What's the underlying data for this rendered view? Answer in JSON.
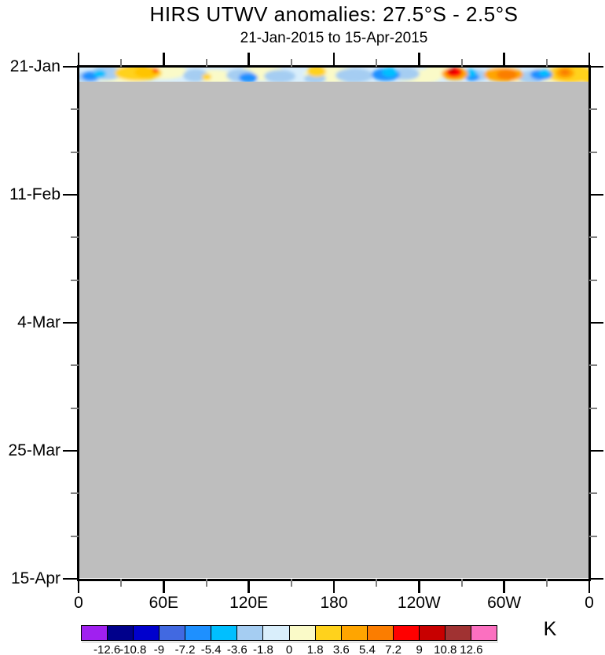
{
  "chart_data": {
    "type": "heatmap",
    "title": "HIRS UTWV anomalies: 27.5°S - 2.5°S",
    "subtitle": "21-Jan-2015 to 15-Apr-2015",
    "x_axis": {
      "tick_labels": [
        "0",
        "60E",
        "120E",
        "180",
        "120W",
        "60W",
        "0"
      ],
      "minor_ticks_between": 1
    },
    "y_axis": {
      "tick_labels": [
        "21-Jan",
        "11-Feb",
        "4-Mar",
        "25-Mar",
        "15-Apr"
      ],
      "minor_ticks_between": 2
    },
    "colorbar": {
      "unit": "K",
      "boundary_labels": [
        "-12.6",
        "-10.8",
        "-9",
        "-7.2",
        "-5.4",
        "-3.6",
        "-1.8",
        "0",
        "1.8",
        "3.6",
        "5.4",
        "7.2",
        "9",
        "10.8",
        "12.6"
      ],
      "colors": [
        "#A020F0",
        "#00008B",
        "#0000CD",
        "#4169E1",
        "#1E90FF",
        "#00BFFF",
        "#A5CDF2",
        "#D9EEFB",
        "#FAFAC8",
        "#FFD21C",
        "#FFA500",
        "#FB7D00",
        "#FF0000",
        "#C80000",
        "#A03232",
        "#FB70C0"
      ],
      "grid_on": false
    },
    "missing_data_color": "#BEBEBE",
    "data_strip": {
      "note": "anomaly field present only near 21-Jan; all later dates missing (gray)",
      "background": "#D9EEFB",
      "blobs": [
        [
          55,
          9,
          40,
          12,
          "#FAFAC8"
        ],
        [
          105,
          5,
          32,
          10,
          "#FAFAC8"
        ],
        [
          172,
          12,
          26,
          9,
          "#FAFAC8"
        ],
        [
          232,
          7,
          30,
          10,
          "#FAFAC8"
        ],
        [
          322,
          9,
          36,
          11,
          "#FAFAC8"
        ],
        [
          432,
          12,
          28,
          9,
          "#FAFAC8"
        ],
        [
          458,
          5,
          20,
          8,
          "#FAFAC8"
        ],
        [
          540,
          4,
          18,
          8,
          "#FAFAC8"
        ],
        [
          567,
          14,
          20,
          7,
          "#FAFAC8"
        ],
        [
          620,
          9,
          46,
          14,
          "#FAFAC8"
        ],
        [
          12,
          12,
          16,
          7,
          "#A5CDF2"
        ],
        [
          35,
          7,
          20,
          9,
          "#A5CDF2"
        ],
        [
          148,
          10,
          16,
          8,
          "#A5CDF2"
        ],
        [
          205,
          10,
          18,
          8,
          "#A5CDF2"
        ],
        [
          255,
          11,
          20,
          8,
          "#A5CDF2"
        ],
        [
          350,
          10,
          24,
          9,
          "#A5CDF2"
        ],
        [
          415,
          8,
          18,
          8,
          "#A5CDF2"
        ],
        [
          505,
          10,
          16,
          7,
          "#A5CDF2"
        ],
        [
          575,
          12,
          18,
          8,
          "#A5CDF2"
        ],
        [
          300,
          14,
          14,
          6,
          "#A5CDF2"
        ],
        [
          75,
          7,
          30,
          10,
          "#FFD21C"
        ],
        [
          85,
          6,
          15,
          7,
          "#FFC400"
        ],
        [
          162,
          12,
          6,
          4,
          "#FFD21C"
        ],
        [
          302,
          5,
          12,
          7,
          "#FFD21C"
        ],
        [
          625,
          8,
          30,
          12,
          "#FFD21C"
        ],
        [
          648,
          12,
          14,
          8,
          "#FFD21C"
        ],
        [
          14,
          11,
          11,
          6,
          "#1E90FF"
        ],
        [
          215,
          13,
          12,
          6,
          "#1E90FF"
        ],
        [
          390,
          9,
          18,
          8,
          "#1E90FF"
        ],
        [
          588,
          9,
          14,
          7,
          "#1E90FF"
        ],
        [
          500,
          12,
          9,
          5,
          "#1E90FF"
        ],
        [
          26,
          8,
          8,
          5,
          "#00BFFF"
        ],
        [
          395,
          6,
          10,
          6,
          "#00BFFF"
        ],
        [
          497,
          7,
          9,
          5,
          "#00BFFF"
        ],
        [
          592,
          6,
          7,
          5,
          "#00BFFF"
        ],
        [
          478,
          8,
          17,
          8,
          "#FFA500"
        ],
        [
          477,
          6,
          10,
          6,
          "#FF0000"
        ],
        [
          474,
          4,
          4,
          3,
          "#C80000"
        ],
        [
          540,
          9,
          25,
          9,
          "#FFA500"
        ],
        [
          544,
          9,
          13,
          6,
          "#FB7D00"
        ],
        [
          618,
          7,
          12,
          7,
          "#FFA500"
        ],
        [
          618,
          6,
          6,
          4,
          "#FB7D00"
        ],
        [
          97,
          4,
          4,
          3,
          "#FF4500"
        ]
      ]
    }
  }
}
